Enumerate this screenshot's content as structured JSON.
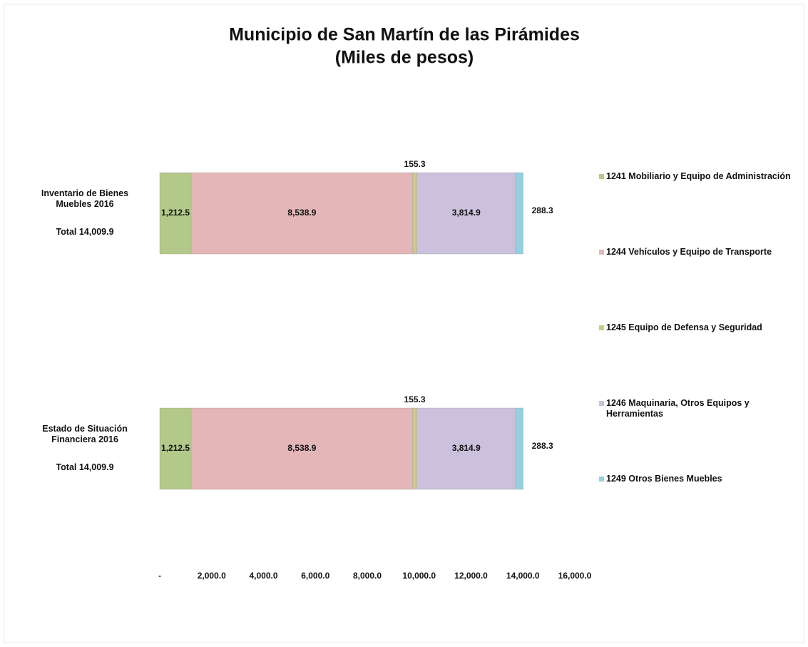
{
  "chart_data": {
    "type": "stacked-bar-horizontal",
    "title": "Municipio de San Martín de las Pirámides",
    "subtitle": "(Miles de pesos)",
    "categories": [
      "Inventario de Bienes Muebles 2016",
      "Estado de Situación Financiera 2016"
    ],
    "annotations": [
      "Total 14,009.9",
      "Total  14,009.9"
    ],
    "series": [
      {
        "name": "1241 Mobiliario y Equipo de Administración",
        "color": "#b3c98a",
        "values": [
          1212.5,
          1212.5
        ],
        "value_labels": [
          "1,212.5",
          "1,212.5"
        ]
      },
      {
        "name": "1244 Vehículos y Equipo de Transporte",
        "color": "#e4b6b8",
        "values": [
          8538.9,
          8538.9
        ],
        "value_labels": [
          "8,538.9",
          "8,538.9"
        ]
      },
      {
        "name": "1245 Equipo de Defensa y Seguridad",
        "color": "#cfc98a",
        "values": [
          155.3,
          155.3
        ],
        "value_labels": [
          "155.3",
          "155.3"
        ]
      },
      {
        "name": "1246 Maquinaria, Otros Equipos y Herramientas",
        "color": "#cbc1dc",
        "values": [
          3814.9,
          3814.9
        ],
        "value_labels": [
          "3,814.9",
          "3,814.9"
        ]
      },
      {
        "name": "1249 Otros Bienes Muebles",
        "color": "#94d0de",
        "values": [
          288.3,
          288.3
        ],
        "value_labels": [
          "288.3",
          "288.3"
        ]
      }
    ],
    "xlim": [
      0,
      16000
    ],
    "xticks": [
      {
        "value": 0,
        "label": "-"
      },
      {
        "value": 2000,
        "label": "2,000.0"
      },
      {
        "value": 4000,
        "label": "4,000.0"
      },
      {
        "value": 6000,
        "label": "6,000.0"
      },
      {
        "value": 8000,
        "label": "8,000.0"
      },
      {
        "value": 10000,
        "label": "10,000.0"
      },
      {
        "value": 12000,
        "label": "12,000.0"
      },
      {
        "value": 14000,
        "label": "14,000.0"
      },
      {
        "value": 16000,
        "label": "16,000.0"
      }
    ],
    "legend": "right"
  }
}
